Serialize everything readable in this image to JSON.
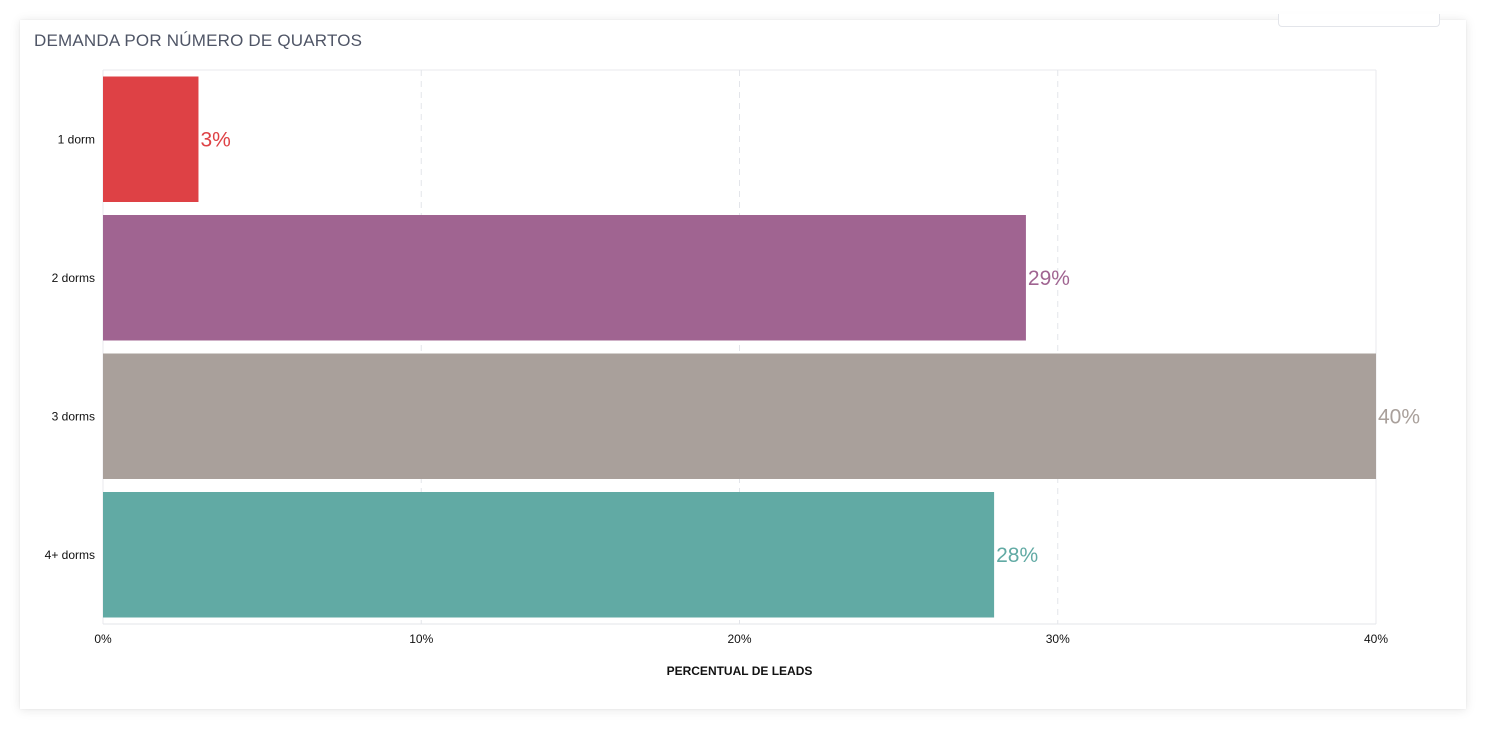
{
  "card": {
    "title": "DEMANDA POR NÚMERO DE QUARTOS"
  },
  "chart_data": {
    "type": "bar",
    "orientation": "horizontal",
    "categories": [
      "1 dorm",
      "2 dorms",
      "3 dorms",
      "4+ dorms"
    ],
    "values": [
      3,
      29,
      40,
      28
    ],
    "value_labels": [
      "3%",
      "29%",
      "40%",
      "28%"
    ],
    "colors": [
      "#de4145",
      "#a06491",
      "#a9a09b",
      "#61aaa4"
    ],
    "xlabel": "PERCENTUAL DE LEADS",
    "ylabel": "",
    "xlim": [
      0,
      40
    ],
    "xticks": [
      0,
      10,
      20,
      30,
      40
    ],
    "xtick_labels": [
      "0%",
      "10%",
      "20%",
      "30%",
      "40%"
    ],
    "grid": "vertical-dashed"
  }
}
